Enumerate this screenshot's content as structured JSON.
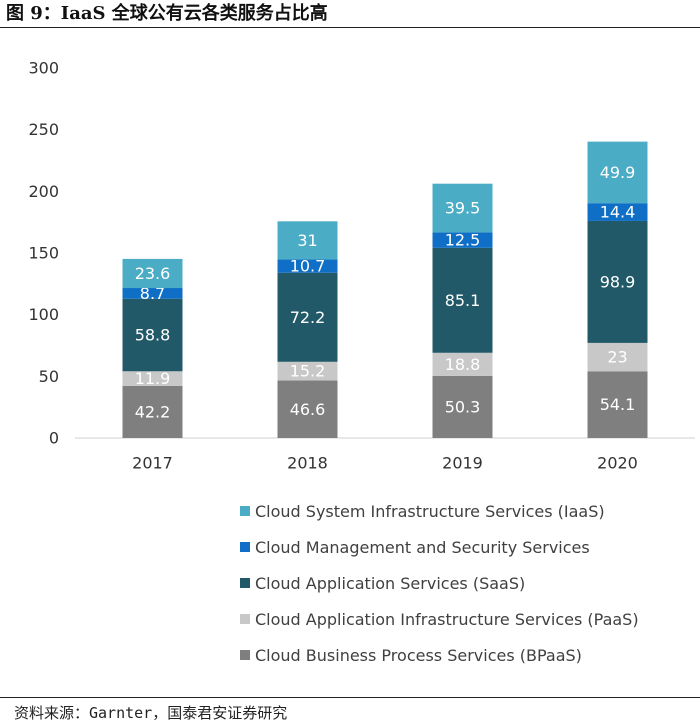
{
  "title": "图 9：IaaS 全球公有云各类服务占比高",
  "source": "资料来源：Garnter，国泰君安证券研究",
  "chart_data": {
    "type": "bar",
    "stacked": true,
    "categories": [
      "2017",
      "2018",
      "2019",
      "2020"
    ],
    "ylim": [
      0,
      300
    ],
    "yticks": [
      0,
      50,
      100,
      150,
      200,
      250,
      300
    ],
    "ytick_labels": [
      "0",
      "50",
      "100",
      "150",
      "200",
      "250",
      "300"
    ],
    "grid": false,
    "legend_position": "bottom",
    "series": [
      {
        "name": "Cloud Business Process Services (BPaaS)",
        "color": "#7f7f7f",
        "label_color": "#ffffff",
        "values": [
          42.2,
          46.6,
          50.3,
          54.1
        ],
        "labels": [
          "42.2",
          "46.6",
          "50.3",
          "54.1"
        ]
      },
      {
        "name": "Cloud Application Infrastructure Services (PaaS)",
        "color": "#c8c8c8",
        "label_color": "#ffffff",
        "values": [
          11.9,
          15.2,
          18.8,
          23
        ],
        "labels": [
          "11.9",
          "15.2",
          "18.8",
          "23"
        ]
      },
      {
        "name": "Cloud Application Services (SaaS)",
        "color": "#215968",
        "label_color": "#ffffff",
        "values": [
          58.8,
          72.2,
          85.1,
          98.9
        ],
        "labels": [
          "58.8",
          "72.2",
          "85.1",
          "98.9"
        ]
      },
      {
        "name": "Cloud Management and Security Services",
        "color": "#0f6fc6",
        "label_color": "#ffffff",
        "values": [
          8.7,
          10.7,
          12.5,
          14.4
        ],
        "labels": [
          "8.7",
          "10.7",
          "12.5",
          "14.4"
        ]
      },
      {
        "name": "Cloud System Infrastructure Services (IaaS)",
        "color": "#4bacc6",
        "label_color": "#ffffff",
        "values": [
          23.6,
          31,
          39.5,
          49.9
        ],
        "labels": [
          "23.6",
          "31",
          "39.5",
          "49.9"
        ]
      }
    ],
    "legend_order": [
      4,
      3,
      2,
      1,
      0
    ]
  }
}
